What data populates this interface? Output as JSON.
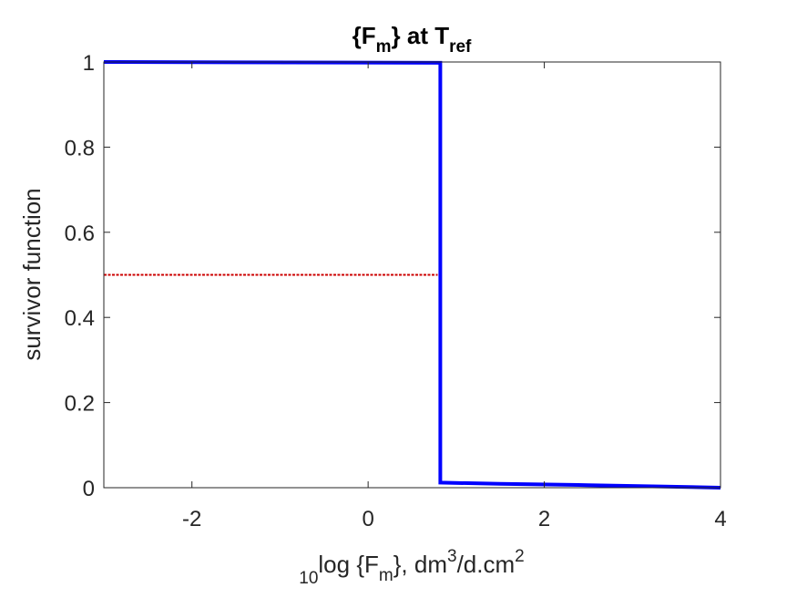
{
  "chart_data": {
    "type": "line",
    "title": {
      "part1": "{F",
      "sub1": "m",
      "part2": "} at T",
      "sub2": "ref"
    },
    "xlabel": {
      "pre_sub": "10",
      "part1": "log {F",
      "sub1": "m",
      "part2": "}, dm",
      "sup1": "3",
      "part3": "/d.cm",
      "sup2": "2"
    },
    "ylabel": "survivor function",
    "xlim": [
      -3.0,
      4.0
    ],
    "ylim": [
      0,
      1
    ],
    "xticks": [
      -2,
      0,
      2,
      4
    ],
    "xtick_labels": [
      "-2",
      "0",
      "2",
      "4"
    ],
    "yticks": [
      0,
      0.2,
      0.4,
      0.6,
      0.8,
      1
    ],
    "ytick_labels": [
      "0",
      "0.2",
      "0.4",
      "0.6",
      "0.8",
      "1"
    ],
    "grid": false,
    "box": true,
    "series": [
      {
        "style": "solid",
        "color": "#0000ff",
        "x": [
          -3.0,
          0.82,
          0.82,
          1.5,
          2.5,
          3.3,
          4.0
        ],
        "y": [
          1.0,
          0.998,
          0.012,
          0.009,
          0.006,
          0.003,
          0.0
        ]
      },
      {
        "style": "dashed",
        "color": "#cc0000",
        "x": [
          -3.0,
          0.79
        ],
        "y": [
          0.5,
          0.5
        ]
      }
    ]
  }
}
